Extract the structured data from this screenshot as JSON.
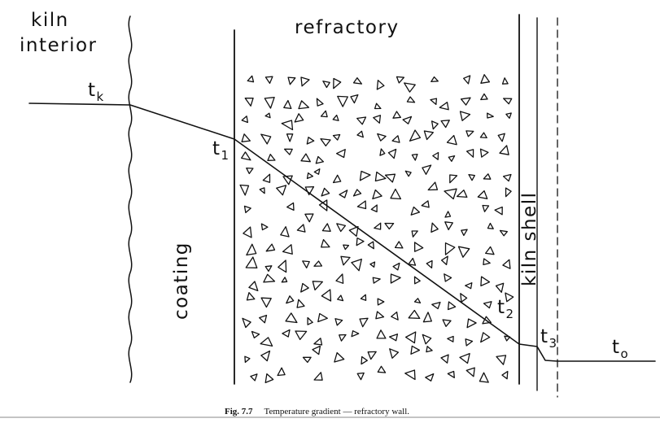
{
  "labels": {
    "kiln_interior_line1": "kiln",
    "kiln_interior_line2": "interior",
    "refractory": "refractory",
    "coating": "coating",
    "kiln_shell": "kiln shell"
  },
  "temperatures": {
    "tk": {
      "base": "t",
      "sub": "k"
    },
    "t1": {
      "base": "t",
      "sub": "1"
    },
    "t2": {
      "base": "t",
      "sub": "2"
    },
    "t3": {
      "base": "t",
      "sub": "3"
    },
    "to": {
      "base": "t",
      "sub": "o"
    }
  },
  "caption": {
    "fig": "Fig. 7.7",
    "text": "Temperature gradient — refractory wall."
  }
}
